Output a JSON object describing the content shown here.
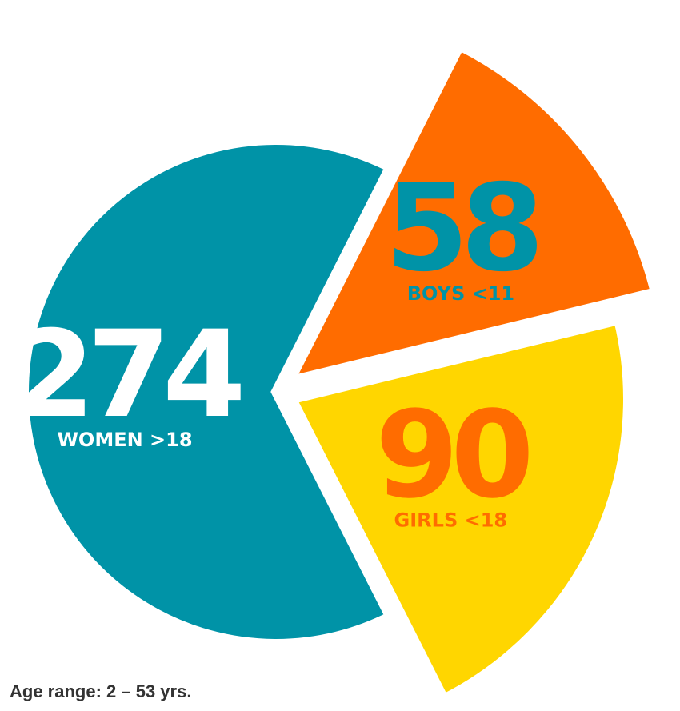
{
  "chart_data": {
    "type": "pie",
    "categories": [
      "WOMEN >18",
      "BOYS <11",
      "GIRLS <18"
    ],
    "values": [
      274,
      58,
      90
    ],
    "colors": [
      "#0093a7",
      "#ff6c00",
      "#ffd600"
    ],
    "note": "Age range: 2 – 53 yrs."
  }
}
